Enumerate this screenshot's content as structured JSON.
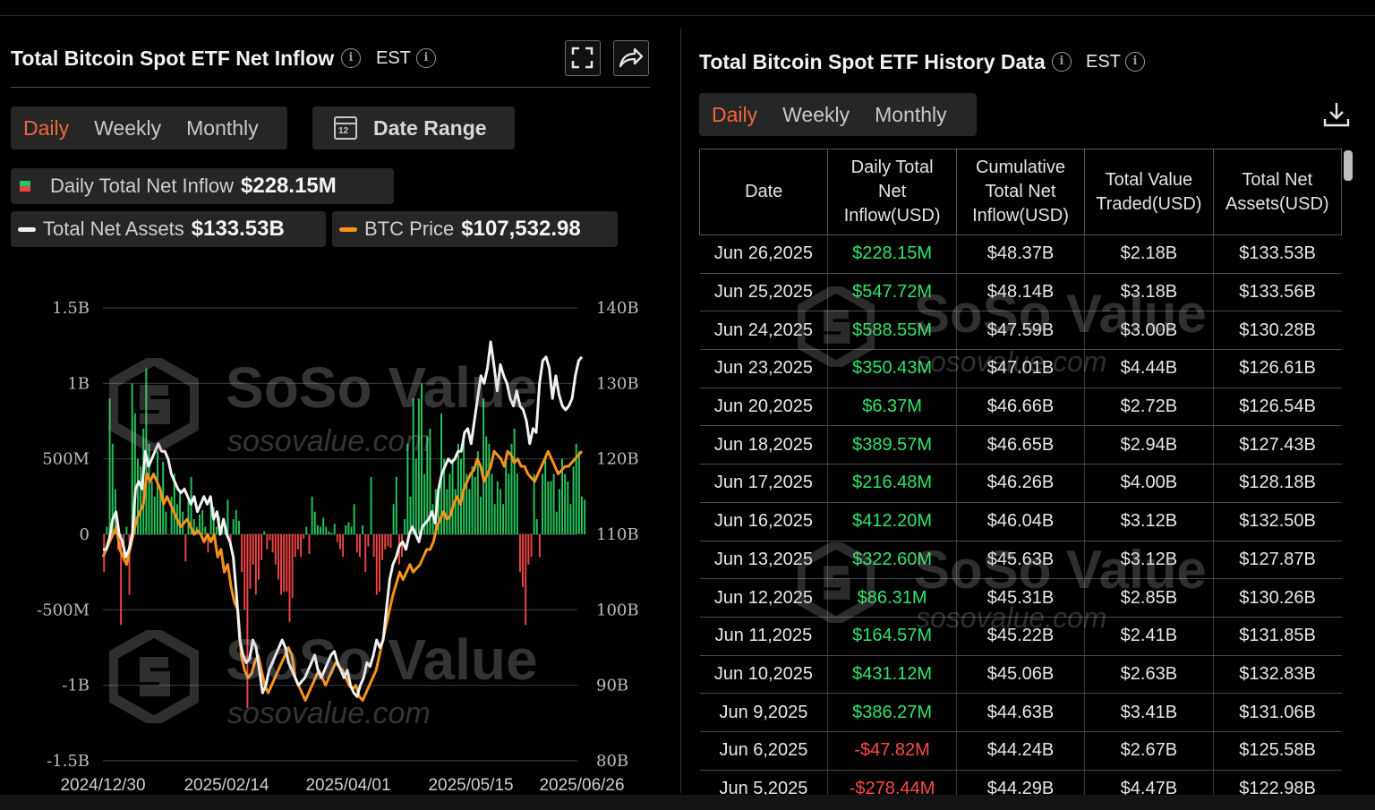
{
  "chart_panel": {
    "title": "Total Bitcoin Spot ETF Net Inflow",
    "timezone": "EST",
    "tabs": [
      "Daily",
      "Weekly",
      "Monthly"
    ],
    "active_tab": "Daily",
    "date_range_label": "Date Range",
    "calendar_day": "12",
    "legend": {
      "inflow_label": "Daily Total Net Inflow",
      "inflow_value": "$228.15M",
      "assets_label": "Total Net Assets",
      "assets_value": "$133.53B",
      "btc_label": "BTC Price",
      "btc_value": "$107,532.98"
    }
  },
  "history_panel": {
    "title": "Total Bitcoin Spot ETF History Data",
    "timezone": "EST",
    "tabs": [
      "Daily",
      "Weekly",
      "Monthly"
    ],
    "active_tab": "Daily",
    "columns": [
      "Date",
      "Daily Total Net Inflow(USD)",
      "Cumulative Total Net Inflow(USD)",
      "Total Value Traded(USD)",
      "Total Net Assets(USD)"
    ],
    "rows": [
      [
        "Jun 26,2025",
        "$228.15M",
        "$48.37B",
        "$2.18B",
        "$133.53B"
      ],
      [
        "Jun 25,2025",
        "$547.72M",
        "$48.14B",
        "$3.18B",
        "$133.56B"
      ],
      [
        "Jun 24,2025",
        "$588.55M",
        "$47.59B",
        "$3.00B",
        "$130.28B"
      ],
      [
        "Jun 23,2025",
        "$350.43M",
        "$47.01B",
        "$4.44B",
        "$126.61B"
      ],
      [
        "Jun 20,2025",
        "$6.37M",
        "$46.66B",
        "$2.72B",
        "$126.54B"
      ],
      [
        "Jun 18,2025",
        "$389.57M",
        "$46.65B",
        "$2.94B",
        "$127.43B"
      ],
      [
        "Jun 17,2025",
        "$216.48M",
        "$46.26B",
        "$4.00B",
        "$128.18B"
      ],
      [
        "Jun 16,2025",
        "$412.20M",
        "$46.04B",
        "$3.12B",
        "$132.50B"
      ],
      [
        "Jun 13,2025",
        "$322.60M",
        "$45.63B",
        "$3.12B",
        "$127.87B"
      ],
      [
        "Jun 12,2025",
        "$86.31M",
        "$45.31B",
        "$2.85B",
        "$130.26B"
      ],
      [
        "Jun 11,2025",
        "$164.57M",
        "$45.22B",
        "$2.41B",
        "$131.85B"
      ],
      [
        "Jun 10,2025",
        "$431.12M",
        "$45.06B",
        "$2.63B",
        "$132.83B"
      ],
      [
        "Jun 9,2025",
        "$386.27M",
        "$44.63B",
        "$3.41B",
        "$131.06B"
      ],
      [
        "Jun 6,2025",
        "-$47.82M",
        "$44.24B",
        "$2.67B",
        "$125.58B"
      ],
      [
        "Jun 5,2025",
        "-$278.44M",
        "$44.29B",
        "$4.47B",
        "$122.98B"
      ]
    ]
  },
  "watermark": {
    "brand": "SoSo Value",
    "url": "sosovalue.com"
  },
  "colors": {
    "accent": "#f0643c",
    "inflow_pos": "#22c55e",
    "inflow_neg": "#ef4444",
    "assets_line": "#f2f2f2",
    "btc_line": "#f7931a"
  },
  "chart_data": {
    "type": "bar",
    "left_axis_ticks": [
      "1.5B",
      "1B",
      "500M",
      "0",
      "-500M",
      "-1B",
      "-1.5B"
    ],
    "right_axis_ticks": [
      "140B",
      "130B",
      "120B",
      "110B",
      "100B",
      "90B",
      "80B"
    ],
    "x_ticks": [
      "2024/12/30",
      "2025/02/14",
      "2025/04/01",
      "2025/05/15",
      "2025/06/26"
    ],
    "ylim_left": [
      -1500000000,
      1500000000
    ],
    "ylim_right": [
      80000000000,
      140000000000
    ],
    "series": [
      {
        "name": "Daily Total Net Inflow",
        "kind": "bar",
        "values": [
          -250,
          50,
          900,
          600,
          300,
          -100,
          -600,
          -180,
          50,
          -400,
          1000,
          800,
          500,
          450,
          700,
          1100,
          600,
          350,
          250,
          550,
          300,
          480,
          150,
          0,
          250,
          400,
          200,
          280,
          150,
          -180,
          220,
          380,
          100,
          50,
          130,
          160,
          50,
          -120,
          250,
          180,
          50,
          120,
          30,
          60,
          230,
          -80,
          100,
          160,
          90,
          -250,
          -500,
          -1150,
          -360,
          -200,
          -400,
          -300,
          -170,
          20,
          -100,
          -40,
          -120,
          -200,
          -300,
          -400,
          -380,
          -380,
          -580,
          -420,
          -150,
          -100,
          -150,
          -30,
          50,
          -130,
          250,
          150,
          60,
          50,
          110,
          50,
          20,
          10,
          70,
          -50,
          -100,
          -150,
          60,
          80,
          50,
          200,
          -120,
          -150,
          60,
          -250,
          -80,
          380,
          -150,
          -400,
          -380,
          -170,
          -100,
          -80,
          -90,
          200,
          380,
          -200,
          -150,
          100,
          600,
          250,
          900,
          500,
          900,
          1000,
          400,
          650,
          700,
          200,
          300,
          300,
          800,
          500,
          300,
          400,
          500,
          300,
          600,
          500,
          650,
          400,
          300,
          450,
          380,
          550,
          250,
          900,
          650,
          600,
          400,
          200,
          350,
          300,
          200,
          500,
          400,
          600,
          700,
          400,
          -250,
          -350,
          -600,
          -200,
          -150,
          400,
          100,
          -150,
          400,
          500,
          350,
          350,
          400,
          150,
          300,
          500,
          400,
          350,
          200,
          450,
          600,
          550,
          250,
          230
        ],
        "unit": "millions USD"
      },
      {
        "name": "Total Net Assets",
        "kind": "line",
        "values": [
          108,
          108,
          109.5,
          112,
          113,
          110,
          109,
          107,
          108,
          110,
          116,
          117,
          116,
          121,
          119,
          120,
          121,
          122,
          121,
          121,
          120,
          118,
          117,
          116,
          115.5,
          116,
          115,
          114,
          115,
          113,
          114,
          115,
          114,
          115,
          112,
          113,
          110,
          112,
          110,
          109,
          107,
          102,
          96,
          94,
          93,
          93.5,
          96,
          95,
          92,
          89,
          90,
          92,
          93,
          94,
          95,
          96,
          95,
          93,
          92,
          91,
          90,
          90.5,
          91,
          92,
          93,
          94,
          92,
          91,
          92,
          93,
          94,
          94.5,
          93,
          92,
          91,
          92,
          90,
          89,
          88.5,
          90,
          91,
          93,
          92.5,
          94,
          96,
          95,
          96,
          100,
          104,
          106,
          107,
          108.5,
          109,
          108,
          110,
          111,
          110,
          109,
          111,
          111.5,
          112,
          113,
          111.5,
          116,
          118,
          119,
          120,
          119.5,
          120,
          121,
          121,
          123.5,
          124,
          122,
          125,
          128,
          131,
          130,
          132,
          135.5,
          132.5,
          129,
          132.5,
          131,
          130,
          128,
          127,
          129,
          127,
          126.5,
          125,
          122,
          124,
          123.5,
          130,
          133,
          133.5,
          132,
          128,
          131,
          128.5,
          127,
          126.5,
          127,
          128,
          131,
          133,
          133.5
        ],
        "unit": "billions USD"
      },
      {
        "name": "BTC Price",
        "kind": "line",
        "values": [
          107,
          108,
          109,
          110,
          111,
          108,
          107,
          106,
          108,
          110,
          112,
          113,
          114,
          118,
          117,
          118,
          117,
          116,
          114,
          115,
          114,
          113,
          112,
          111,
          111.5,
          112,
          111,
          110,
          110.5,
          110,
          109,
          110,
          109,
          110,
          107,
          108,
          105,
          106,
          103,
          101,
          100,
          94,
          92,
          91,
          91.5,
          93,
          94,
          92,
          90,
          89,
          90,
          91,
          92,
          93,
          94,
          95,
          94,
          91,
          90,
          89,
          88,
          89,
          90,
          91,
          92,
          91,
          90,
          91,
          92,
          93,
          92.5,
          92,
          91,
          90,
          89.5,
          90,
          88.5,
          88,
          89,
          90,
          91,
          92,
          94,
          96,
          98,
          100,
          102,
          103.5,
          105,
          104,
          105,
          106,
          105,
          105.5,
          106,
          107,
          108,
          108,
          109,
          111,
          112,
          113,
          112,
          112.5,
          114,
          115,
          114,
          116,
          117,
          118,
          118.5,
          120,
          119,
          117,
          118,
          119,
          121,
          120.5,
          120,
          119,
          121,
          120.5,
          119.5,
          120,
          119,
          119,
          118,
          117.5,
          117,
          118,
          119,
          120,
          121,
          120,
          119,
          118,
          118.5,
          119,
          119,
          119.5,
          120,
          120.5,
          121
        ],
        "unit": "billions USD"
      }
    ]
  }
}
